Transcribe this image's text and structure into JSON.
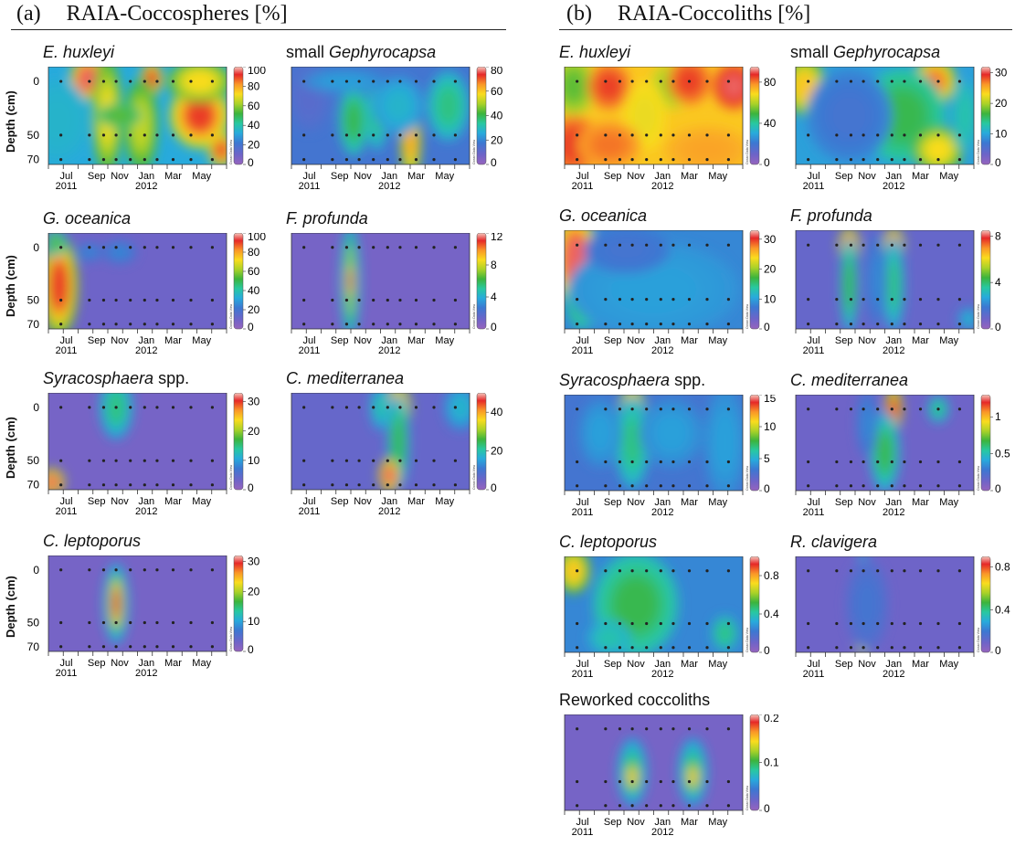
{
  "panels": [
    {
      "label": "(a)",
      "title": "RAIA-Coccospheres [%]"
    },
    {
      "label": "(b)",
      "title": "RAIA-Coccoliths [%]"
    }
  ],
  "depth_axis_label": "Depth (cm)",
  "depth_ticks": [
    "0",
    "50",
    "70"
  ],
  "month_ticks": [
    "Jul",
    "Sep",
    "Nov",
    "Jan",
    "Mar",
    "May"
  ],
  "year_ticks": [
    "2011",
    "2012"
  ],
  "colorbar_side_text": "Ocean Data View",
  "chart_data": [
    {
      "type": "heatmap",
      "id": "a1",
      "panel": "a",
      "title_prefix": "",
      "title_italic": "E. huxleyi",
      "title_suffix": "",
      "colorbar_ticks": [
        "0",
        "20",
        "40",
        "60",
        "80",
        "100"
      ],
      "range": [
        0,
        100
      ]
    },
    {
      "type": "heatmap",
      "id": "a2",
      "panel": "a",
      "title_prefix": "small ",
      "title_italic": "Gephyrocapsa",
      "title_suffix": "",
      "colorbar_ticks": [
        "0",
        "20",
        "40",
        "60",
        "80"
      ],
      "range": [
        0,
        80
      ]
    },
    {
      "type": "heatmap",
      "id": "a3",
      "panel": "a",
      "title_prefix": "",
      "title_italic": "G. oceanica",
      "title_suffix": "",
      "colorbar_ticks": [
        "0",
        "20",
        "40",
        "60",
        "80",
        "100"
      ],
      "range": [
        0,
        100
      ]
    },
    {
      "type": "heatmap",
      "id": "a4",
      "panel": "a",
      "title_prefix": "",
      "title_italic": "F. profunda",
      "title_suffix": "",
      "colorbar_ticks": [
        "0",
        "4",
        "8",
        "12"
      ],
      "range": [
        0,
        12
      ]
    },
    {
      "type": "heatmap",
      "id": "a5",
      "panel": "a",
      "title_prefix": "",
      "title_italic": "Syracosphaera",
      "title_suffix": " spp.",
      "colorbar_ticks": [
        "0",
        "10",
        "20",
        "30"
      ],
      "range": [
        0,
        33
      ]
    },
    {
      "type": "heatmap",
      "id": "a6",
      "panel": "a",
      "title_prefix": "",
      "title_italic": "C. mediterranea",
      "title_suffix": "",
      "colorbar_ticks": [
        "0",
        "20",
        "40"
      ],
      "range": [
        0,
        50
      ]
    },
    {
      "type": "heatmap",
      "id": "a7",
      "panel": "a",
      "title_prefix": "",
      "title_italic": "C. leptoporus",
      "title_suffix": "",
      "colorbar_ticks": [
        "0",
        "10",
        "20",
        "30"
      ],
      "range": [
        0,
        32
      ]
    },
    {
      "type": "heatmap",
      "id": "b1",
      "panel": "b",
      "title_prefix": "",
      "title_italic": "E. huxleyi",
      "title_suffix": "",
      "colorbar_ticks": [
        "0",
        "40",
        "80"
      ],
      "range": [
        0,
        95
      ]
    },
    {
      "type": "heatmap",
      "id": "b2",
      "panel": "b",
      "title_prefix": "small ",
      "title_italic": "Gephyrocapsa",
      "title_suffix": "",
      "colorbar_ticks": [
        "0",
        "10",
        "20",
        "30"
      ],
      "range": [
        0,
        32
      ]
    },
    {
      "type": "heatmap",
      "id": "b3",
      "panel": "b",
      "title_prefix": "",
      "title_italic": "G. oceanica",
      "title_suffix": "",
      "colorbar_ticks": [
        "0",
        "10",
        "20",
        "30"
      ],
      "range": [
        0,
        33
      ]
    },
    {
      "type": "heatmap",
      "id": "b4",
      "panel": "b",
      "title_prefix": "",
      "title_italic": "F. profunda",
      "title_suffix": "",
      "colorbar_ticks": [
        "0",
        "4",
        "8"
      ],
      "range": [
        0,
        8.5
      ]
    },
    {
      "type": "heatmap",
      "id": "b5",
      "panel": "b",
      "title_prefix": "",
      "title_italic": "Syracosphaera",
      "title_suffix": " spp.",
      "colorbar_ticks": [
        "0",
        "5",
        "10",
        "15"
      ],
      "range": [
        0,
        15
      ]
    },
    {
      "type": "heatmap",
      "id": "b6",
      "panel": "b",
      "title_prefix": "",
      "title_italic": "C. mediterranea",
      "title_suffix": "",
      "colorbar_ticks": [
        "0",
        "0.5",
        "1"
      ],
      "range": [
        0,
        1.3
      ]
    },
    {
      "type": "heatmap",
      "id": "b7",
      "panel": "b",
      "title_prefix": "",
      "title_italic": "C. leptoporus",
      "title_suffix": "",
      "colorbar_ticks": [
        "0",
        "0.4",
        "0.8"
      ],
      "range": [
        0,
        1.0
      ]
    },
    {
      "type": "heatmap",
      "id": "b8",
      "panel": "b",
      "title_prefix": "",
      "title_italic": "R. clavigera",
      "title_suffix": "",
      "colorbar_ticks": [
        "0",
        "0.4",
        "0.8"
      ],
      "range": [
        0,
        0.9
      ]
    },
    {
      "type": "heatmap",
      "id": "b9",
      "panel": "b",
      "title_prefix": "Reworked coccoliths",
      "title_italic": "",
      "title_suffix": "",
      "colorbar_ticks": [
        "0",
        "0.1",
        "0.2"
      ],
      "range": [
        0,
        0.2
      ]
    }
  ]
}
